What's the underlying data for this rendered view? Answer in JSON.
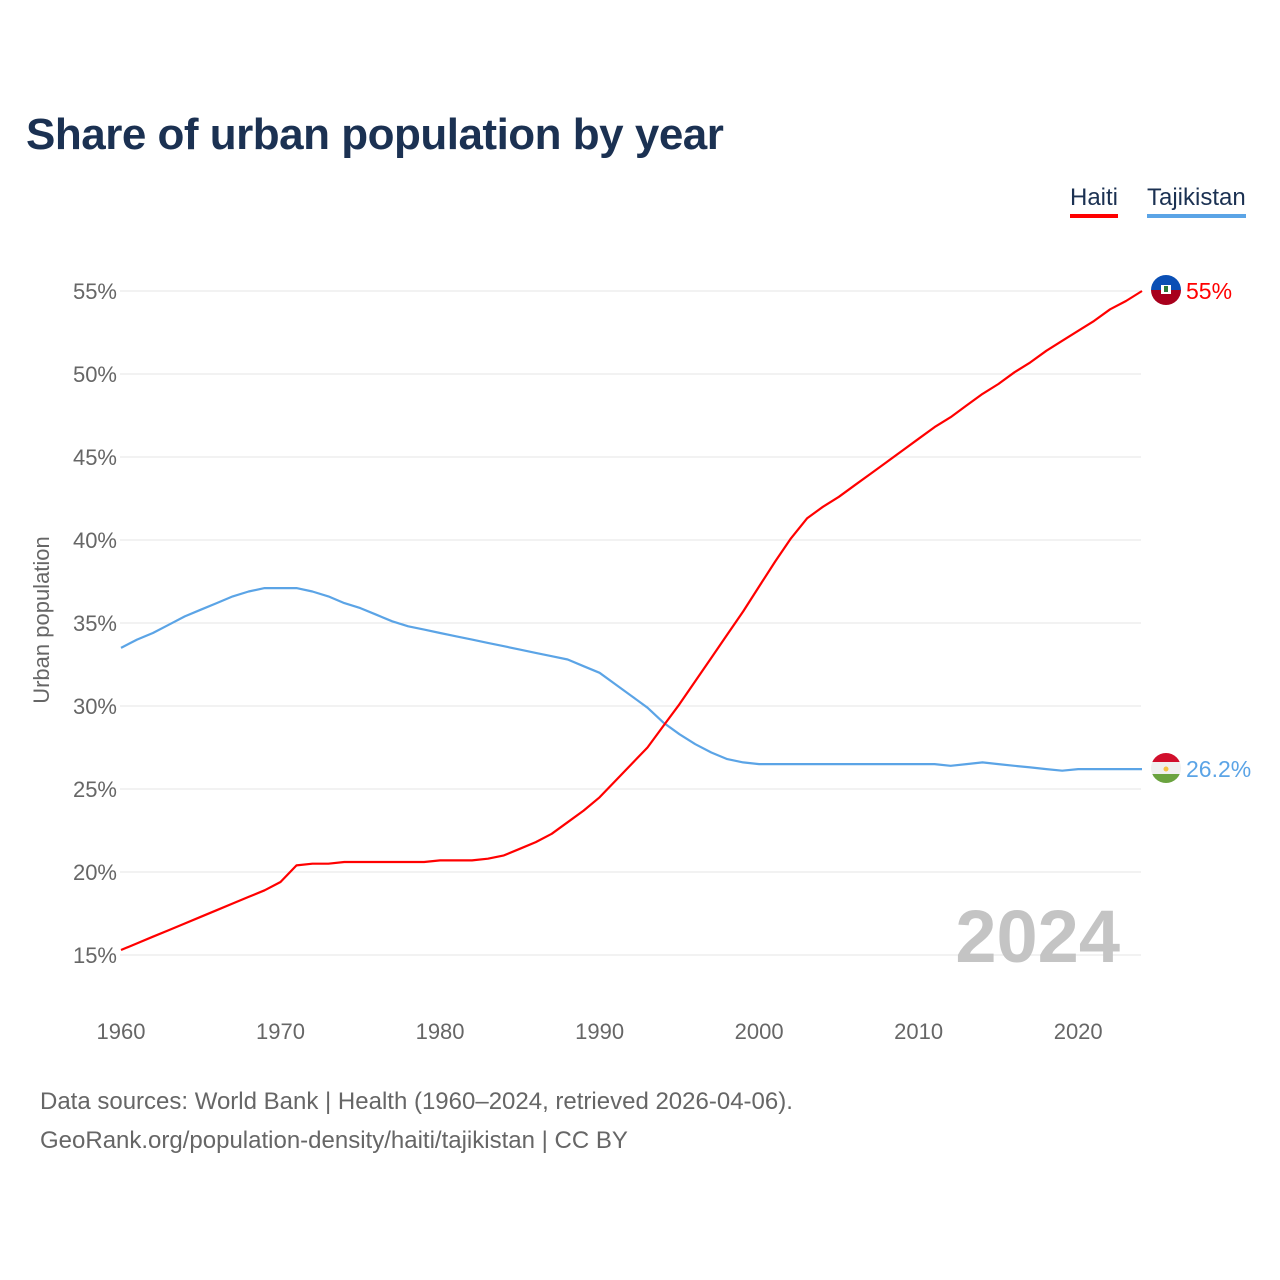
{
  "chart_data": {
    "type": "line",
    "title": "Share of urban population by year",
    "ylabel": "Urban population",
    "xlabel": "",
    "ylim": [
      15,
      55
    ],
    "xlim": [
      1960,
      2024
    ],
    "yticks": [
      "15%",
      "20%",
      "25%",
      "30%",
      "35%",
      "40%",
      "45%",
      "50%",
      "55%"
    ],
    "ytick_values": [
      15,
      20,
      25,
      30,
      35,
      40,
      45,
      50,
      55
    ],
    "xticks": [
      "1960",
      "1970",
      "1980",
      "1990",
      "2000",
      "2010",
      "2020"
    ],
    "xtick_values": [
      1960,
      1970,
      1980,
      1990,
      2000,
      2010,
      2020
    ],
    "grid": true,
    "legend_position": "top-right",
    "watermark_year": "2024",
    "x_start": 1960,
    "series": [
      {
        "name": "Haiti",
        "color": "#ff0000",
        "end_label": "55%",
        "flag": "haiti-flag",
        "values": [
          15.3,
          15.7,
          16.1,
          16.5,
          16.9,
          17.3,
          17.7,
          18.1,
          18.5,
          18.9,
          19.4,
          20.4,
          20.5,
          20.5,
          20.6,
          20.6,
          20.6,
          20.6,
          20.6,
          20.6,
          20.7,
          20.7,
          20.7,
          20.8,
          21.0,
          21.4,
          21.8,
          22.3,
          23.0,
          23.7,
          24.5,
          25.5,
          26.5,
          27.5,
          28.8,
          30.1,
          31.5,
          32.9,
          34.3,
          35.7,
          37.2,
          38.7,
          40.1,
          41.3,
          42.0,
          42.6,
          43.3,
          44.0,
          44.7,
          45.4,
          46.1,
          46.8,
          47.4,
          48.1,
          48.8,
          49.4,
          50.1,
          50.7,
          51.4,
          52.0,
          52.6,
          53.2,
          53.9,
          54.4,
          55.0
        ]
      },
      {
        "name": "Tajikistan",
        "color": "#5ba4e6",
        "end_label": "26.2%",
        "flag": "tajikistan-flag",
        "values": [
          33.5,
          34.0,
          34.4,
          34.9,
          35.4,
          35.8,
          36.2,
          36.6,
          36.9,
          37.1,
          37.1,
          37.1,
          36.9,
          36.6,
          36.2,
          35.9,
          35.5,
          35.1,
          34.8,
          34.6,
          34.4,
          34.2,
          34.0,
          33.8,
          33.6,
          33.4,
          33.2,
          33.0,
          32.8,
          32.4,
          32.0,
          31.3,
          30.6,
          29.9,
          29.0,
          28.3,
          27.7,
          27.2,
          26.8,
          26.6,
          26.5,
          26.5,
          26.5,
          26.5,
          26.5,
          26.5,
          26.5,
          26.5,
          26.5,
          26.5,
          26.5,
          26.5,
          26.4,
          26.5,
          26.6,
          26.5,
          26.4,
          26.3,
          26.2,
          26.1,
          26.2,
          26.2,
          26.2,
          26.2,
          26.2
        ]
      }
    ]
  },
  "footer": {
    "sources": "Data sources: World Bank | Health (1960–2024, retrieved 2026-04-06).",
    "link": "GeoRank.org/population-density/haiti/tajikistan | CC BY"
  }
}
